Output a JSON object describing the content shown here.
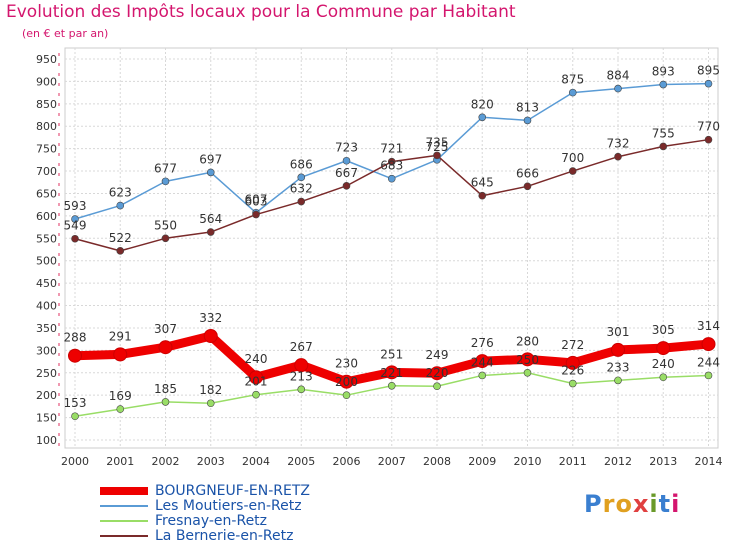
{
  "title": "Evolution des Impôts locaux pour la Commune par Habitant",
  "subtitle": "(en € et par an)",
  "logo": {
    "text": "Proxiti",
    "colors": [
      "#3a7fd0",
      "#e0a020",
      "#e0a020",
      "#e04040",
      "#6a9a2a",
      "#3a7fd0",
      "#d4166e"
    ]
  },
  "chart_data": {
    "type": "line",
    "title": "Evolution des Impôts locaux pour la Commune par Habitant",
    "subtitle": "(en € et par an)",
    "xlabel": "",
    "ylabel": "",
    "x": [
      "2000",
      "2001",
      "2002",
      "2003",
      "2004",
      "2005",
      "2006",
      "2007",
      "2008",
      "2009",
      "2010",
      "2011",
      "2012",
      "2013",
      "2014"
    ],
    "ylim": [
      100,
      950
    ],
    "yticks": [
      100,
      150,
      200,
      250,
      300,
      350,
      400,
      450,
      500,
      550,
      600,
      650,
      700,
      750,
      800,
      850,
      900,
      950
    ],
    "grid": true,
    "legend_position": "bottom-left",
    "series": [
      {
        "name": "BOURGNEUF-EN-RETZ",
        "color": "#ee0000",
        "emphasis": true,
        "values": [
          288,
          291,
          307,
          332,
          240,
          267,
          230,
          251,
          249,
          276,
          280,
          272,
          301,
          305,
          314
        ]
      },
      {
        "name": "Les Moutiers-en-Retz",
        "color": "#5a9bd5",
        "emphasis": false,
        "values": [
          593,
          623,
          677,
          697,
          607,
          686,
          723,
          683,
          725,
          820,
          813,
          875,
          884,
          893,
          895
        ]
      },
      {
        "name": "Fresnay-en-Retz",
        "color": "#99dd66",
        "emphasis": false,
        "values": [
          153,
          169,
          185,
          182,
          201,
          213,
          200,
          221,
          220,
          244,
          250,
          226,
          233,
          240,
          244
        ]
      },
      {
        "name": "La Bernerie-en-Retz",
        "color": "#7a2a2a",
        "emphasis": false,
        "values": [
          549,
          522,
          550,
          564,
          603,
          632,
          667,
          721,
          735,
          645,
          666,
          700,
          732,
          755,
          770
        ]
      }
    ]
  }
}
